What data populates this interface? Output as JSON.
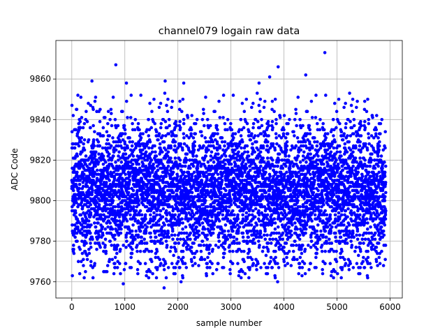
{
  "chart_data": {
    "type": "scatter",
    "title": "channel079 logain raw data",
    "xlabel": "sample number",
    "ylabel": "ADC Code",
    "xlim": [
      -300,
      6230
    ],
    "ylim": [
      9752,
      9879
    ],
    "xticks": [
      0,
      1000,
      2000,
      3000,
      4000,
      5000,
      6000
    ],
    "yticks": [
      9760,
      9780,
      9800,
      9820,
      9840,
      9860
    ],
    "grid": true,
    "marker_color": "#0000ff",
    "n_samples": 5920,
    "distribution": {
      "mean": 9805,
      "sd": 18,
      "min": 9757,
      "max": 9873
    },
    "notable_points": [
      {
        "x": 830,
        "y": 9867
      },
      {
        "x": 4770,
        "y": 9873
      },
      {
        "x": 3890,
        "y": 9866
      },
      {
        "x": 4410,
        "y": 9862
      },
      {
        "x": 3730,
        "y": 9861
      },
      {
        "x": 1030,
        "y": 9858
      },
      {
        "x": 1760,
        "y": 9859
      },
      {
        "x": 2110,
        "y": 9858
      },
      {
        "x": 380,
        "y": 9859
      },
      {
        "x": 3530,
        "y": 9858
      },
      {
        "x": 970,
        "y": 9759
      },
      {
        "x": 1740,
        "y": 9757
      },
      {
        "x": 2060,
        "y": 9760
      },
      {
        "x": 3880,
        "y": 9760
      },
      {
        "x": 4340,
        "y": 9763
      },
      {
        "x": 150,
        "y": 9764
      },
      {
        "x": 2540,
        "y": 9763
      },
      {
        "x": 1780,
        "y": 9762
      }
    ]
  }
}
